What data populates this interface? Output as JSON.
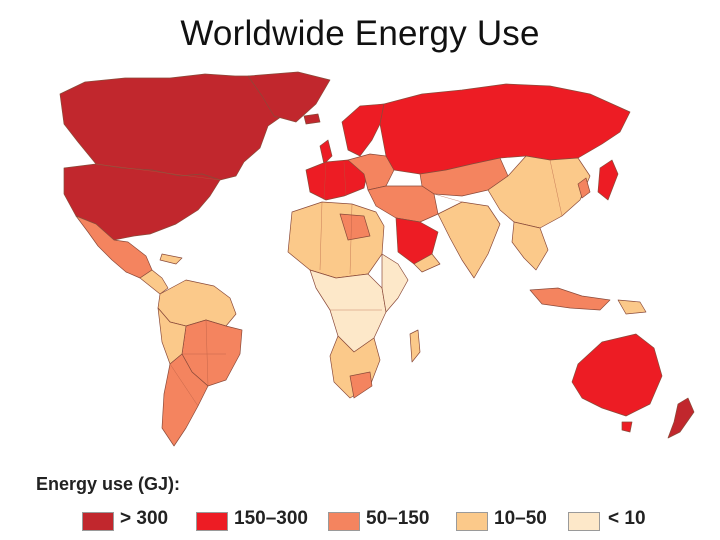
{
  "title": "Worldwide Energy Use",
  "legend": {
    "title": "Energy use (GJ):",
    "items": [
      {
        "label": "> 300",
        "color": "#c1272d"
      },
      {
        "label": "150–300",
        "color": "#ed1c24"
      },
      {
        "label": "50–150",
        "color": "#f4845f"
      },
      {
        "label": "10–50",
        "color": "#fbc98a"
      },
      {
        "label": "< 10",
        "color": "#fde8c9"
      }
    ]
  }
}
